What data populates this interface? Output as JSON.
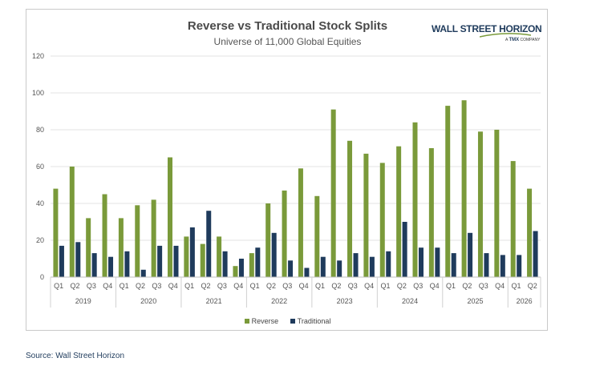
{
  "chart_data": {
    "type": "bar",
    "title": "Reverse vs Traditional Stock Splits",
    "subtitle": "Universe of 11,000 Global Equities",
    "ylim": [
      0,
      120
    ],
    "yticks": [
      0,
      20,
      40,
      60,
      80,
      100,
      120
    ],
    "grid": true,
    "legend_position": "bottom",
    "categories": [
      "Q1",
      "Q2",
      "Q3",
      "Q4",
      "Q1",
      "Q2",
      "Q3",
      "Q4",
      "Q1",
      "Q2",
      "Q3",
      "Q4",
      "Q1",
      "Q2",
      "Q3",
      "Q4",
      "Q1",
      "Q2",
      "Q3",
      "Q4",
      "Q1",
      "Q2",
      "Q3",
      "Q4",
      "Q1",
      "Q2",
      "Q3",
      "Q4",
      "Q1",
      "Q2"
    ],
    "year_groups": [
      {
        "label": "2019",
        "count": 4
      },
      {
        "label": "2020",
        "count": 4
      },
      {
        "label": "2021",
        "count": 4
      },
      {
        "label": "2022",
        "count": 4
      },
      {
        "label": "2023",
        "count": 4
      },
      {
        "label": "2024",
        "count": 4
      },
      {
        "label": "2025",
        "count": 4
      },
      {
        "label": "2026",
        "count": 2
      }
    ],
    "series": [
      {
        "name": "Reverse",
        "color": "#7a9a3a",
        "values": [
          48,
          60,
          32,
          45,
          32,
          39,
          42,
          65,
          22,
          18,
          22,
          6,
          13,
          40,
          47,
          59,
          44,
          91,
          74,
          67,
          62,
          71,
          84,
          70,
          93,
          96,
          79,
          80,
          63,
          48
        ]
      },
      {
        "name": "Traditional",
        "color": "#1f3b5c",
        "values": [
          17,
          19,
          13,
          11,
          14,
          4,
          17,
          17,
          27,
          36,
          14,
          10,
          16,
          24,
          9,
          5,
          11,
          9,
          13,
          11,
          14,
          30,
          16,
          16,
          13,
          24,
          13,
          12,
          12,
          25
        ]
      }
    ]
  },
  "logo": {
    "main": "WALL STREET HORIZON",
    "sub_prefix": "A",
    "sub_brand": "TMX",
    "sub_suffix": "COMPANY"
  },
  "source": "Source: Wall Street Horizon"
}
